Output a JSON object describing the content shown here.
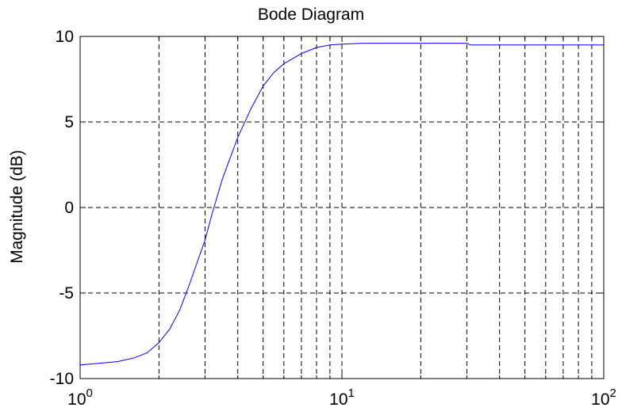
{
  "chart_data": {
    "type": "line",
    "title": "Bode Diagram",
    "xlabel": "",
    "ylabel": "Magnitude (dB)",
    "xscale": "log",
    "xlim": [
      1,
      100
    ],
    "ylim": [
      -10,
      10
    ],
    "grid": true,
    "x_ticks": [
      {
        "value": 1,
        "base": "10",
        "exp": "0"
      },
      {
        "value": 10,
        "base": "10",
        "exp": "1"
      },
      {
        "value": 100,
        "base": "10",
        "exp": "2"
      }
    ],
    "y_ticks": [
      {
        "value": 10,
        "label": "10"
      },
      {
        "value": 5,
        "label": "5"
      },
      {
        "value": 0,
        "label": "0"
      },
      {
        "value": -5,
        "label": "-5"
      },
      {
        "value": -10,
        "label": "-10"
      }
    ],
    "series": [
      {
        "color": "#0000ff",
        "x": [
          1.0,
          1.1,
          1.2,
          1.3,
          1.4,
          1.6,
          1.8,
          2.0,
          2.2,
          2.4,
          2.6,
          2.8,
          3.0,
          3.2,
          3.5,
          4.0,
          4.5,
          5.0,
          5.5,
          6.0,
          7.0,
          8.0,
          9.0,
          10.0,
          12.0,
          20.0,
          30.0,
          31.0,
          50.0,
          100.0
        ],
        "y": [
          -9.2,
          -9.15,
          -9.1,
          -9.05,
          -9.0,
          -8.8,
          -8.5,
          -7.9,
          -7.1,
          -6.0,
          -4.6,
          -3.2,
          -1.9,
          -0.3,
          1.7,
          4.1,
          5.8,
          7.1,
          7.9,
          8.4,
          9.0,
          9.35,
          9.5,
          9.55,
          9.6,
          9.6,
          9.6,
          9.5,
          9.5,
          9.5
        ]
      }
    ]
  }
}
